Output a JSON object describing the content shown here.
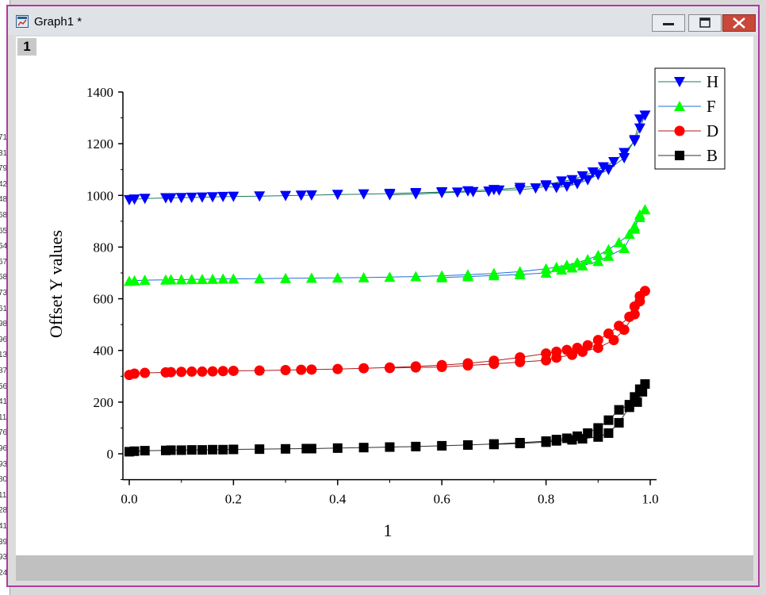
{
  "window": {
    "title": "Graph1 *",
    "layer_label": "1"
  },
  "icons": {
    "app": "graph-window-icon",
    "minimize": "minimize-icon",
    "maximize": "maximize-icon",
    "close": "close-icon"
  },
  "left_strip_numbers": [
    "71",
    "31",
    "79",
    "42",
    "48",
    "68",
    "65",
    "64",
    "67",
    "68",
    "73",
    "61",
    "98",
    "96",
    "13",
    "87",
    "56",
    "41",
    "11",
    "76",
    "96",
    "93",
    "80",
    "11",
    "28",
    "41",
    "39",
    "93",
    "24"
  ],
  "colors": {
    "H": "#0000ff",
    "F": "#00ff00",
    "D": "#ff0000",
    "B": "#000000",
    "H_line": "#1e7b5a",
    "F_line": "#1f6fd6",
    "D_line": "#b01b1b",
    "B_line": "#303030"
  },
  "chart_data": {
    "type": "line",
    "xlabel": "1",
    "ylabel": "Offset Y values",
    "xlim": [
      0,
      1.0
    ],
    "ylim": [
      -100,
      1400
    ],
    "xticks": [
      "0.0",
      "0.2",
      "0.4",
      "0.6",
      "0.8",
      "1.0"
    ],
    "yticks": [
      "0",
      "200",
      "400",
      "600",
      "800",
      "1000",
      "1200",
      "1400"
    ],
    "legend_position": "top-right",
    "series": [
      {
        "name": "H",
        "marker": "triangle-down",
        "x": [
          0,
          0.01,
          0.03,
          0.07,
          0.08,
          0.1,
          0.12,
          0.14,
          0.16,
          0.18,
          0.2,
          0.25,
          0.3,
          0.33,
          0.35,
          0.4,
          0.45,
          0.5,
          0.55,
          0.6,
          0.65,
          0.7,
          0.75,
          0.8,
          0.83,
          0.85,
          0.87,
          0.89,
          0.91,
          0.93,
          0.95,
          0.97,
          0.98,
          0.99,
          0.98,
          0.97,
          0.95,
          0.92,
          0.9,
          0.88,
          0.86,
          0.84,
          0.82,
          0.8,
          0.78,
          0.75,
          0.71,
          0.69,
          0.66,
          0.63,
          0.6,
          0.55,
          0.5
        ],
        "y": [
          983,
          985,
          988,
          990,
          990,
          991,
          992,
          993,
          994,
          995,
          996,
          997,
          999,
          1000,
          1001,
          1003,
          1005,
          1007,
          1010,
          1013,
          1017,
          1022,
          1030,
          1040,
          1055,
          1060,
          1075,
          1090,
          1110,
          1130,
          1165,
          1210,
          1260,
          1310,
          1295,
          1215,
          1145,
          1100,
          1080,
          1060,
          1045,
          1035,
          1030,
          1035,
          1028,
          1022,
          1020,
          1016,
          1014,
          1012,
          1010,
          1005,
          1002
        ]
      },
      {
        "name": "F",
        "marker": "triangle-up",
        "x": [
          0,
          0.01,
          0.03,
          0.07,
          0.08,
          0.1,
          0.12,
          0.14,
          0.16,
          0.18,
          0.2,
          0.25,
          0.3,
          0.35,
          0.4,
          0.45,
          0.5,
          0.55,
          0.6,
          0.65,
          0.7,
          0.75,
          0.8,
          0.82,
          0.84,
          0.86,
          0.88,
          0.9,
          0.92,
          0.94,
          0.96,
          0.97,
          0.98,
          0.99,
          0.98,
          0.97,
          0.95,
          0.92,
          0.9,
          0.87,
          0.85,
          0.83,
          0.8,
          0.75,
          0.7,
          0.65,
          0.6
        ],
        "y": [
          668,
          670,
          672,
          673,
          674,
          674,
          675,
          675,
          676,
          677,
          677,
          678,
          679,
          680,
          681,
          682,
          684,
          686,
          689,
          693,
          698,
          705,
          716,
          722,
          730,
          740,
          752,
          768,
          790,
          818,
          850,
          880,
          915,
          945,
          925,
          870,
          795,
          765,
          745,
          728,
          720,
          712,
          700,
          694,
          690,
          686,
          682
        ]
      },
      {
        "name": "D",
        "marker": "circle",
        "x": [
          0,
          0.01,
          0.03,
          0.07,
          0.08,
          0.1,
          0.12,
          0.14,
          0.16,
          0.18,
          0.2,
          0.25,
          0.3,
          0.33,
          0.35,
          0.4,
          0.45,
          0.5,
          0.55,
          0.6,
          0.65,
          0.7,
          0.75,
          0.8,
          0.82,
          0.84,
          0.86,
          0.88,
          0.9,
          0.92,
          0.94,
          0.96,
          0.97,
          0.98,
          0.99,
          0.98,
          0.97,
          0.95,
          0.93,
          0.9,
          0.87,
          0.85,
          0.82,
          0.8,
          0.75,
          0.7,
          0.65,
          0.6,
          0.55,
          0.5
        ],
        "y": [
          305,
          310,
          313,
          315,
          316,
          317,
          318,
          318,
          319,
          320,
          321,
          322,
          324,
          325,
          326,
          328,
          331,
          334,
          338,
          343,
          350,
          360,
          373,
          388,
          395,
          402,
          410,
          420,
          440,
          465,
          495,
          530,
          570,
          610,
          630,
          590,
          540,
          480,
          440,
          410,
          395,
          383,
          372,
          362,
          355,
          348,
          342,
          336,
          334,
          332
        ]
      },
      {
        "name": "B",
        "marker": "square",
        "x": [
          0,
          0.01,
          0.03,
          0.07,
          0.08,
          0.1,
          0.12,
          0.14,
          0.16,
          0.18,
          0.2,
          0.25,
          0.3,
          0.34,
          0.35,
          0.4,
          0.45,
          0.5,
          0.55,
          0.6,
          0.65,
          0.7,
          0.75,
          0.8,
          0.82,
          0.84,
          0.86,
          0.88,
          0.9,
          0.92,
          0.94,
          0.96,
          0.97,
          0.98,
          0.99,
          0.985,
          0.975,
          0.96,
          0.94,
          0.92,
          0.9,
          0.87,
          0.85,
          0.82,
          0.8,
          0.75,
          0.7
        ],
        "y": [
          8,
          10,
          12,
          13,
          14,
          14,
          15,
          15,
          16,
          16,
          17,
          18,
          19,
          20,
          20,
          22,
          24,
          26,
          28,
          31,
          34,
          38,
          43,
          49,
          55,
          60,
          68,
          80,
          100,
          130,
          170,
          190,
          220,
          250,
          270,
          240,
          200,
          180,
          120,
          80,
          65,
          58,
          54,
          50,
          45,
          40,
          36
        ]
      }
    ]
  }
}
